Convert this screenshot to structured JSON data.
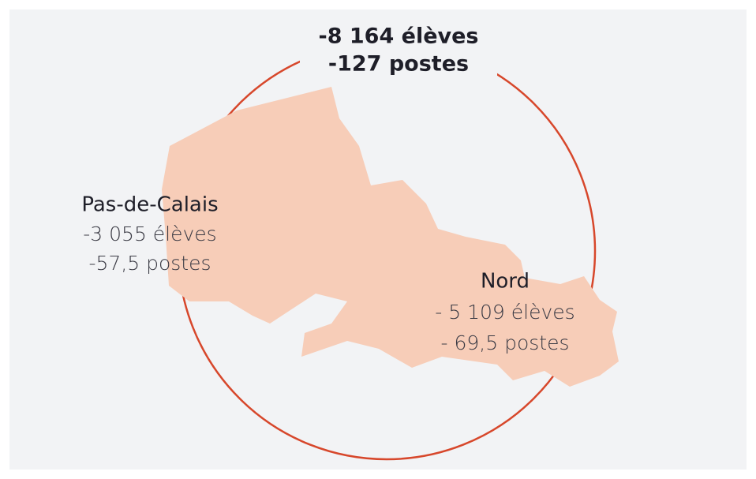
{
  "total": {
    "line1": "-8 164 élèves",
    "line2": "-127 postes"
  },
  "regions": [
    {
      "name": "Pas-de-Calais",
      "line1": "-3 055 élèves",
      "line2": "-57,5 postes"
    },
    {
      "name": "Nord",
      "line1": "- 5 109 élèves",
      "line2": "- 69,5 postes"
    }
  ]
}
